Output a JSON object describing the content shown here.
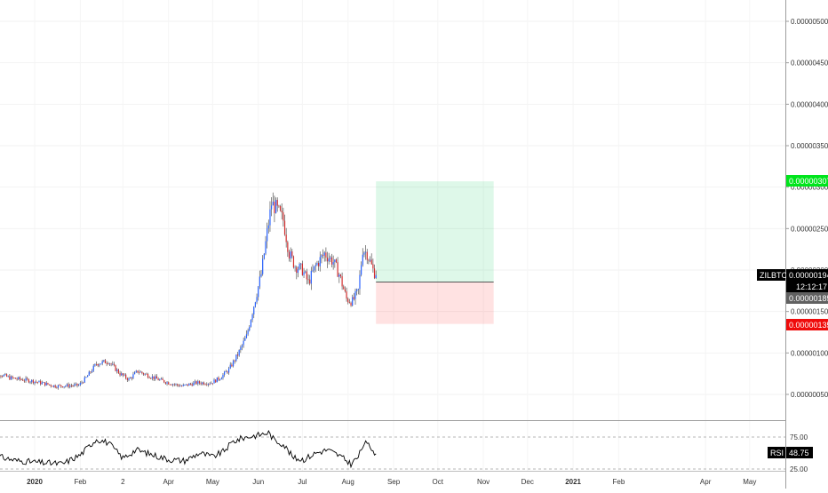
{
  "chart_data": {
    "type": "candlestick",
    "symbol": "ZILBTC",
    "time_axis": [
      "2020",
      "Feb",
      "2",
      "Apr",
      "May",
      "Jun",
      "Jul",
      "Aug",
      "Sep",
      "Oct",
      "Nov",
      "Dec",
      "2021",
      "Feb",
      "Apr",
      "May"
    ],
    "price_axis": {
      "ticks": [
        "0.00000050",
        "0.00000100",
        "0.00000150",
        "0.00000200",
        "0.00000250",
        "0.00000300",
        "0.00000350",
        "0.00000400",
        "0.00000450",
        "0.00000500"
      ],
      "ylim": [
        2e-07,
        5.2e-06
      ]
    },
    "price_labels": {
      "symbol": "ZILBTC",
      "last_price": "0.00000194",
      "countdown": "12:12:17",
      "prev_close": "0.00000185",
      "target": "0.00000307",
      "stop": "0.00000135"
    },
    "position": {
      "entry": 1.855e-06,
      "target": 3.07e-06,
      "stop": 1.35e-06,
      "start_date": "2020-08-20",
      "end_date": "2020-11-08"
    },
    "ohlc_anchors": [
      [
        "2019-12-01",
        9.4e-07
      ],
      [
        "2019-12-06",
        7.6e-07
      ],
      [
        "2019-12-15",
        7e-07
      ],
      [
        "2019-12-31",
        6.6e-07
      ],
      [
        "2020-01-15",
        6e-07
      ],
      [
        "2020-01-31",
        6.1e-07
      ],
      [
        "2020-02-05",
        7e-07
      ],
      [
        "2020-02-12",
        8.7e-07
      ],
      [
        "2020-02-20",
        9e-07
      ],
      [
        "2020-02-28",
        7.5e-07
      ],
      [
        "2020-03-05",
        6.8e-07
      ],
      [
        "2020-03-11",
        7.8e-07
      ],
      [
        "2020-03-18",
        7.3e-07
      ],
      [
        "2020-03-25",
        6.8e-07
      ],
      [
        "2020-04-01",
        6.4e-07
      ],
      [
        "2020-04-10",
        6e-07
      ],
      [
        "2020-04-20",
        6.4e-07
      ],
      [
        "2020-04-30",
        6.4e-07
      ],
      [
        "2020-05-06",
        7e-07
      ],
      [
        "2020-05-12",
        8e-07
      ],
      [
        "2020-05-18",
        9.8e-07
      ],
      [
        "2020-05-24",
        1.2e-06
      ],
      [
        "2020-05-28",
        1.5e-06
      ],
      [
        "2020-06-03",
        1.95e-06
      ],
      [
        "2020-06-07",
        2.45e-06
      ],
      [
        "2020-06-10",
        2.8e-06
      ],
      [
        "2020-06-13",
        2.75e-06
      ],
      [
        "2020-06-18",
        2.6e-06
      ],
      [
        "2020-06-22",
        2.2e-06
      ],
      [
        "2020-06-26",
        2.05e-06
      ],
      [
        "2020-07-01",
        2e-06
      ],
      [
        "2020-07-05",
        1.85e-06
      ],
      [
        "2020-07-10",
        2.05e-06
      ],
      [
        "2020-07-16",
        2.2e-06
      ],
      [
        "2020-07-22",
        2.1e-06
      ],
      [
        "2020-07-26",
        1.95e-06
      ],
      [
        "2020-07-31",
        1.65e-06
      ],
      [
        "2020-08-04",
        1.62e-06
      ],
      [
        "2020-08-08",
        1.75e-06
      ],
      [
        "2020-08-11",
        2.25e-06
      ],
      [
        "2020-08-14",
        2.2e-06
      ],
      [
        "2020-08-18",
        2e-06
      ],
      [
        "2020-08-20",
        1.94e-06
      ]
    ],
    "rsi": {
      "label": "RSI",
      "value": "48.75",
      "levels": [
        "75.00",
        "25.00"
      ],
      "ylim": [
        15,
        95
      ],
      "anchors": [
        [
          "2019-12-01",
          62
        ],
        [
          "2019-12-08",
          44
        ],
        [
          "2019-12-20",
          38
        ],
        [
          "2020-01-05",
          35
        ],
        [
          "2020-01-20",
          33
        ],
        [
          "2020-02-01",
          47
        ],
        [
          "2020-02-12",
          72
        ],
        [
          "2020-02-20",
          66
        ],
        [
          "2020-03-01",
          42
        ],
        [
          "2020-03-10",
          55
        ],
        [
          "2020-03-20",
          48
        ],
        [
          "2020-04-01",
          40
        ],
        [
          "2020-04-12",
          38
        ],
        [
          "2020-04-22",
          50
        ],
        [
          "2020-05-01",
          44
        ],
        [
          "2020-05-08",
          52
        ],
        [
          "2020-05-15",
          68
        ],
        [
          "2020-05-22",
          74
        ],
        [
          "2020-06-01",
          78
        ],
        [
          "2020-06-08",
          82
        ],
        [
          "2020-06-12",
          70
        ],
        [
          "2020-06-18",
          64
        ],
        [
          "2020-06-25",
          42
        ],
        [
          "2020-07-02",
          40
        ],
        [
          "2020-07-10",
          50
        ],
        [
          "2020-07-18",
          55
        ],
        [
          "2020-07-26",
          46
        ],
        [
          "2020-08-03",
          33
        ],
        [
          "2020-08-08",
          44
        ],
        [
          "2020-08-12",
          66
        ],
        [
          "2020-08-16",
          60
        ],
        [
          "2020-08-20",
          48.75
        ]
      ]
    },
    "colors": {
      "up": "#2962ff",
      "down": "#d32f2f",
      "wick": "#555555",
      "target_zone": "#00c853",
      "stop_zone": "#ff5252",
      "target_tag": "#00e51c",
      "stop_tag": "#ef0b0b",
      "rsi_line": "#000000"
    }
  }
}
